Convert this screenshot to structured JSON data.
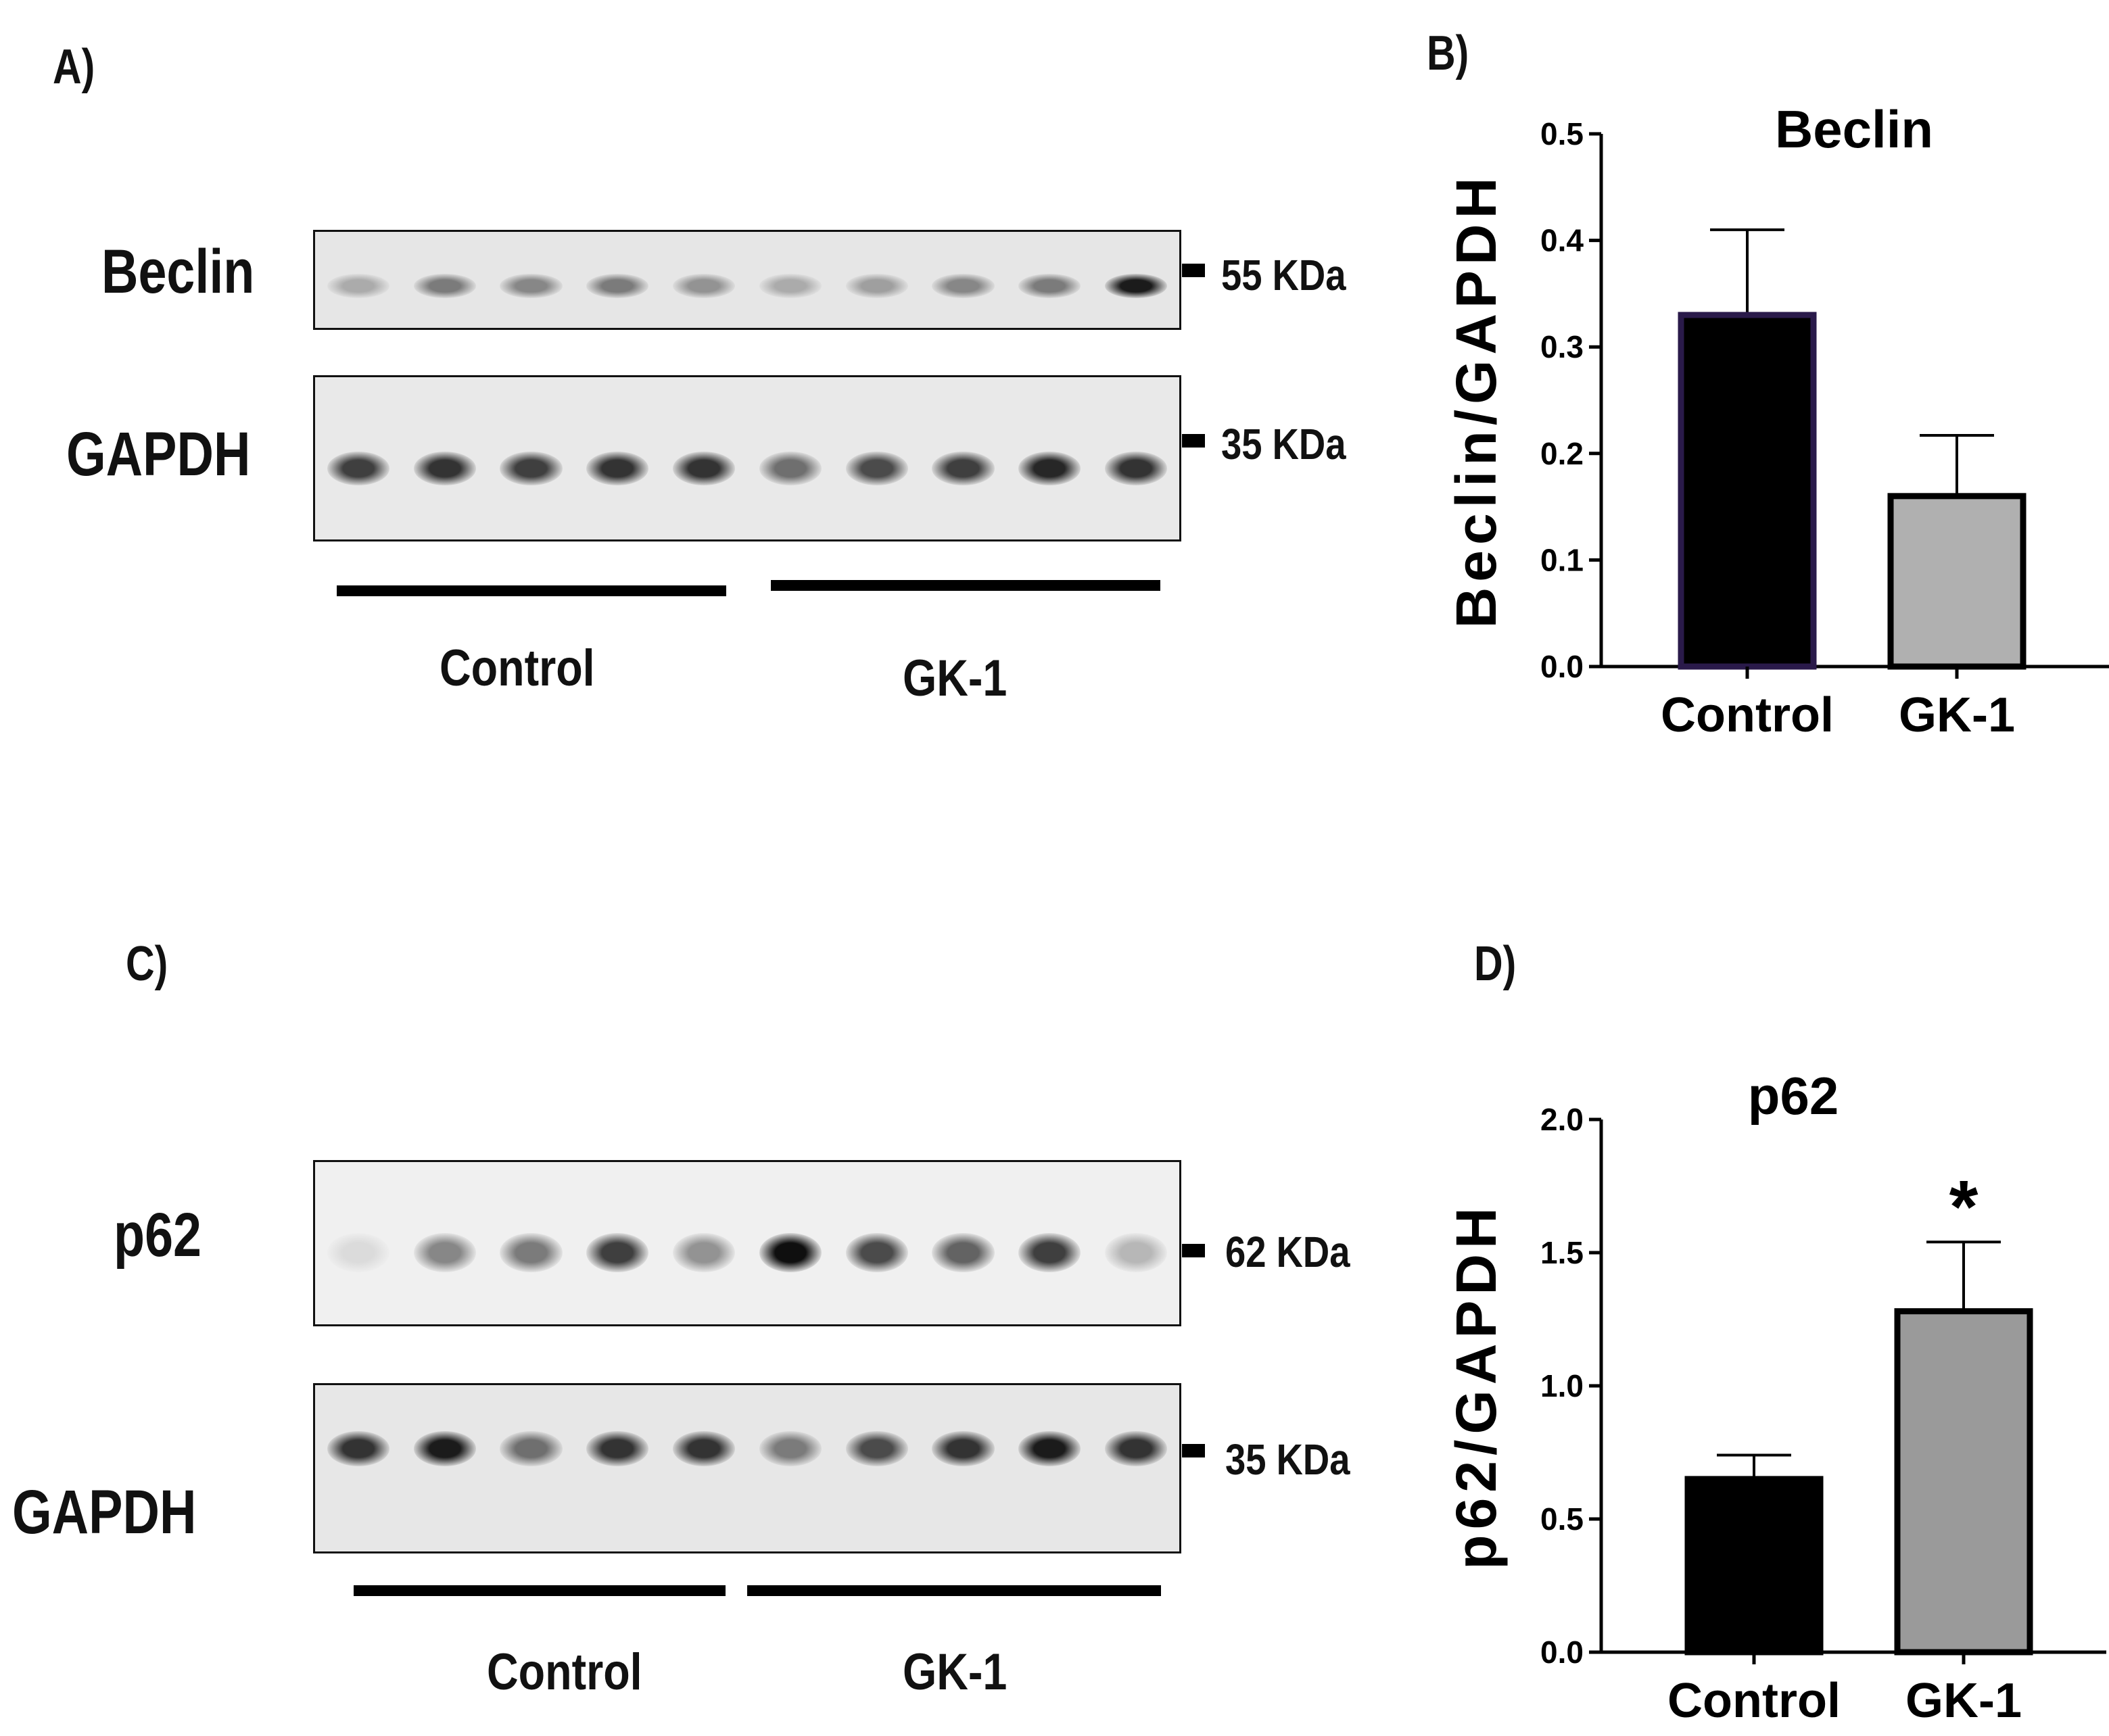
{
  "panels": {
    "a": {
      "letter": "A)",
      "blot_labels": [
        "Beclin",
        "GAPDH"
      ],
      "markers": [
        "55 KDa",
        "35 KDa"
      ],
      "groups": [
        "Control",
        "GK-1"
      ]
    },
    "c": {
      "letter": "C)",
      "blot_labels": [
        "p62",
        "GAPDH"
      ],
      "markers": [
        "62 KDa",
        "35 KDa"
      ],
      "groups": [
        "Control",
        "GK-1"
      ]
    },
    "b": {
      "letter": "B)"
    },
    "d": {
      "letter": "D)"
    }
  },
  "blot_intensities": {
    "beclin": [
      0.35,
      0.55,
      0.5,
      0.55,
      0.45,
      0.35,
      0.4,
      0.5,
      0.55,
      0.95
    ],
    "gapdh_a": [
      0.8,
      0.85,
      0.8,
      0.85,
      0.85,
      0.6,
      0.75,
      0.8,
      0.9,
      0.85
    ],
    "p62": [
      0.15,
      0.5,
      0.55,
      0.8,
      0.45,
      1.0,
      0.75,
      0.65,
      0.8,
      0.3
    ],
    "gapdh_c": [
      0.85,
      0.95,
      0.6,
      0.85,
      0.85,
      0.55,
      0.75,
      0.85,
      0.95,
      0.85
    ]
  },
  "chart_data": [
    {
      "type": "bar",
      "title": "Beclin",
      "ylabel": "Beclin/GAPDH",
      "xlabel": "",
      "categories": [
        "Control",
        "GK-1"
      ],
      "values": [
        0.33,
        0.16
      ],
      "errors": [
        0.08,
        0.057
      ],
      "ylim": [
        0,
        0.5
      ],
      "yticks": [
        0.0,
        0.1,
        0.2,
        0.3,
        0.4,
        0.5
      ],
      "ytick_labels": [
        "0.0",
        "0.1",
        "0.2",
        "0.3",
        "0.4",
        "0.5"
      ],
      "colors": [
        "#000000",
        "#b0b0b0"
      ],
      "edge_colors": [
        "#2a1a4a",
        "#000000"
      ],
      "annotations": [
        "",
        ""
      ]
    },
    {
      "type": "bar",
      "title": "p62",
      "ylabel": "p62/GAPDH",
      "xlabel": "",
      "categories": [
        "Control",
        "GK-1"
      ],
      "values": [
        0.65,
        1.28
      ],
      "errors": [
        0.09,
        0.26
      ],
      "ylim": [
        0,
        2.0
      ],
      "yticks": [
        0.0,
        0.5,
        1.0,
        1.5,
        2.0
      ],
      "ytick_labels": [
        "0.0",
        "0.5",
        "1.0",
        "1.5",
        "2.0"
      ],
      "colors": [
        "#000000",
        "#9a9a9a"
      ],
      "edge_colors": [
        "#000000",
        "#000000"
      ],
      "annotations": [
        "",
        "*"
      ]
    }
  ]
}
